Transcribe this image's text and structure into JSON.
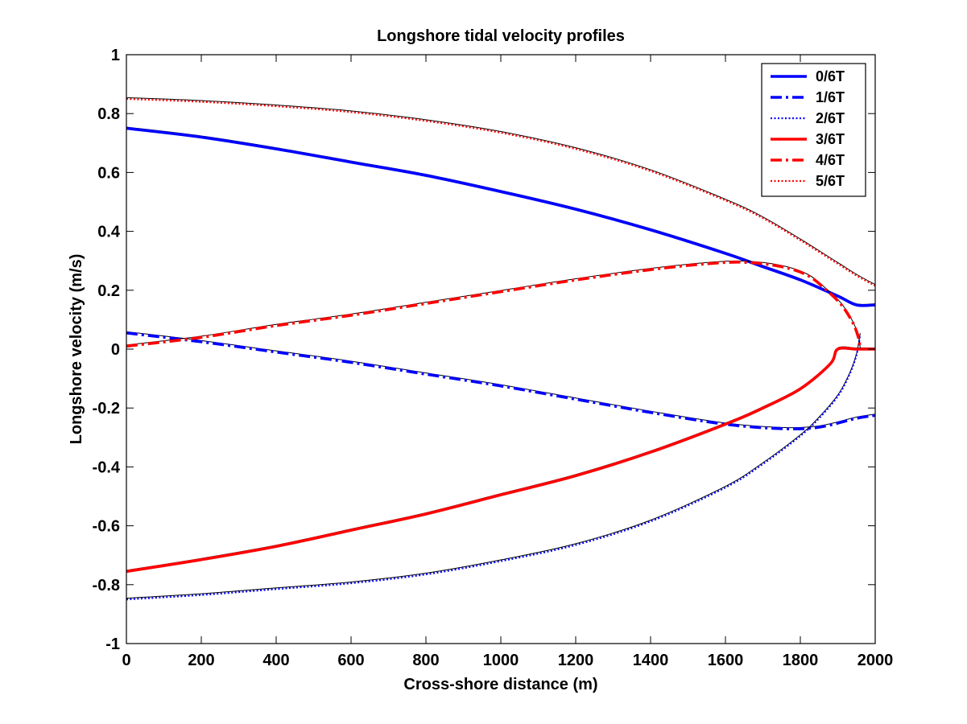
{
  "chart_data": {
    "type": "line",
    "title": "Longshore tidal velocity profiles",
    "xlabel": "Cross-shore distance (m)",
    "ylabel": "Longshore velocity (m/s)",
    "xlim": [
      0,
      2000
    ],
    "ylim": [
      -1,
      1
    ],
    "xticks": [
      0,
      200,
      400,
      600,
      800,
      1000,
      1200,
      1400,
      1600,
      1800,
      2000
    ],
    "yticks": [
      -1,
      -0.8,
      -0.6,
      -0.4,
      -0.2,
      0,
      0.2,
      0.4,
      0.6,
      0.8,
      1
    ],
    "xtick_labels": [
      "0",
      "200",
      "400",
      "600",
      "800",
      "1000",
      "1200",
      "1400",
      "1600",
      "1800",
      "2000"
    ],
    "ytick_labels": [
      "-1",
      "-0.8",
      "-0.6",
      "-0.4",
      "-0.2",
      "0",
      "0.2",
      "0.4",
      "0.6",
      "0.8",
      "1"
    ],
    "grid": false,
    "legend_position": "top-right",
    "series": [
      {
        "name": "0/6T",
        "color": "#0000ff",
        "style": "solid",
        "x": [
          0,
          200,
          400,
          600,
          800,
          1000,
          1200,
          1400,
          1600,
          1700,
          1800,
          1900,
          1950,
          2000
        ],
        "y": [
          0.75,
          0.72,
          0.68,
          0.635,
          0.59,
          0.535,
          0.475,
          0.405,
          0.325,
          0.28,
          0.235,
          0.18,
          0.15,
          0.15
        ]
      },
      {
        "name": "1/6T",
        "color": "#0000ff",
        "style": "dashdot",
        "x": [
          0,
          200,
          400,
          600,
          800,
          1000,
          1200,
          1400,
          1600,
          1750,
          1850,
          1950,
          2000
        ],
        "y": [
          0.055,
          0.025,
          -0.01,
          -0.045,
          -0.085,
          -0.125,
          -0.17,
          -0.215,
          -0.255,
          -0.27,
          -0.265,
          -0.235,
          -0.225
        ]
      },
      {
        "name": "2/6T",
        "color": "#0000ff",
        "style": "dotted",
        "x": [
          0,
          200,
          400,
          600,
          800,
          1000,
          1200,
          1400,
          1600,
          1700,
          1800,
          1850,
          1900,
          1930,
          1950,
          1960
        ],
        "y": [
          -0.85,
          -0.835,
          -0.815,
          -0.795,
          -0.765,
          -0.72,
          -0.665,
          -0.585,
          -0.47,
          -0.39,
          -0.295,
          -0.235,
          -0.16,
          -0.09,
          -0.02,
          0.05
        ]
      },
      {
        "name": "3/6T",
        "color": "#ff0000",
        "style": "solid",
        "x": [
          0,
          200,
          400,
          600,
          800,
          1000,
          1200,
          1400,
          1600,
          1700,
          1800,
          1880,
          1900,
          1950,
          2000
        ],
        "y": [
          -0.755,
          -0.715,
          -0.67,
          -0.615,
          -0.56,
          -0.495,
          -0.43,
          -0.35,
          -0.255,
          -0.2,
          -0.135,
          -0.05,
          0,
          0,
          0
        ]
      },
      {
        "name": "4/6T",
        "color": "#ff0000",
        "style": "dashdot",
        "x": [
          0,
          200,
          400,
          600,
          800,
          1000,
          1200,
          1400,
          1550,
          1650,
          1750,
          1820,
          1870,
          1910,
          1940,
          1955,
          1960
        ],
        "y": [
          0.01,
          0.04,
          0.08,
          0.115,
          0.155,
          0.195,
          0.235,
          0.27,
          0.29,
          0.295,
          0.28,
          0.25,
          0.2,
          0.15,
          0.09,
          0.04,
          0
        ]
      },
      {
        "name": "5/6T",
        "color": "#ff0000",
        "style": "dotted",
        "x": [
          0,
          200,
          400,
          600,
          800,
          1000,
          1200,
          1400,
          1600,
          1700,
          1800,
          1900,
          1950,
          2000
        ],
        "y": [
          0.85,
          0.84,
          0.825,
          0.805,
          0.775,
          0.735,
          0.68,
          0.605,
          0.505,
          0.445,
          0.37,
          0.29,
          0.25,
          0.215
        ]
      }
    ]
  }
}
